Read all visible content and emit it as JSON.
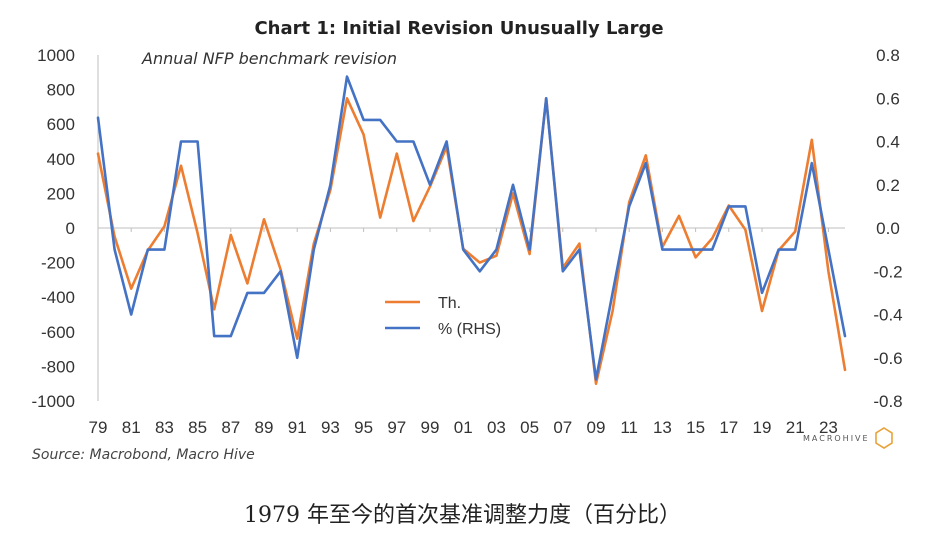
{
  "chart_data": {
    "type": "line",
    "title": "Chart 1: Initial Revision Unusually Large",
    "subtitle": "Annual NFP benchmark revision",
    "source": "Source: Macrobond, Macro Hive",
    "logo": "MACROHIVE",
    "legend_position": "center",
    "x_tick_labels": [
      "79",
      "81",
      "83",
      "85",
      "87",
      "89",
      "91",
      "93",
      "95",
      "97",
      "99",
      "01",
      "03",
      "05",
      "07",
      "09",
      "11",
      "13",
      "15",
      "17",
      "19",
      "21",
      "23"
    ],
    "x": [
      1979,
      1980,
      1981,
      1982,
      1983,
      1984,
      1985,
      1986,
      1987,
      1988,
      1989,
      1990,
      1991,
      1992,
      1993,
      1994,
      1995,
      1996,
      1997,
      1998,
      1999,
      2000,
      2001,
      2002,
      2003,
      2004,
      2005,
      2006,
      2007,
      2008,
      2009,
      2010,
      2011,
      2012,
      2013,
      2014,
      2015,
      2016,
      2017,
      2018,
      2019,
      2020,
      2021,
      2022,
      2023,
      2024
    ],
    "y_left_lim": [
      -1000,
      1000
    ],
    "y_left_ticks": [
      1000,
      800,
      600,
      400,
      200,
      0,
      -200,
      -400,
      -600,
      -800,
      -1000
    ],
    "y_right_lim": [
      -0.8,
      0.8
    ],
    "y_right_ticks": [
      "0.8",
      "0.6",
      "0.4",
      "0.2",
      "0.0",
      "-0.2",
      "-0.4",
      "-0.6",
      "-0.8"
    ],
    "series": [
      {
        "name": "Th.",
        "axis": "left",
        "color": "#ED7D31",
        "values": [
          430,
          -50,
          -350,
          -130,
          10,
          360,
          -30,
          -470,
          -40,
          -320,
          50,
          -240,
          -640,
          -90,
          220,
          750,
          540,
          60,
          430,
          40,
          240,
          470,
          -120,
          -200,
          -160,
          200,
          -150,
          750,
          -230,
          -90,
          -900,
          -480,
          150,
          420,
          -110,
          70,
          -170,
          -60,
          130,
          -10,
          -480,
          -130,
          -20,
          510,
          -250,
          -820
        ]
      },
      {
        "name": "% (RHS)",
        "axis": "right",
        "color": "#4472C4",
        "values": [
          0.51,
          -0.1,
          -0.4,
          -0.1,
          -0.1,
          0.4,
          0.4,
          -0.5,
          -0.5,
          -0.3,
          -0.3,
          -0.2,
          -0.6,
          -0.1,
          0.2,
          0.7,
          0.5,
          0.5,
          0.4,
          0.4,
          0.2,
          0.4,
          -0.1,
          -0.2,
          -0.1,
          0.2,
          -0.1,
          0.6,
          -0.2,
          -0.1,
          -0.7,
          -0.3,
          0.1,
          0.3,
          -0.1,
          -0.1,
          -0.1,
          -0.1,
          0.1,
          0.1,
          -0.3,
          -0.1,
          -0.1,
          0.3,
          -0.1,
          -0.5
        ]
      }
    ]
  },
  "caption": "1979 年至今的首次基准调整力度（百分比）"
}
